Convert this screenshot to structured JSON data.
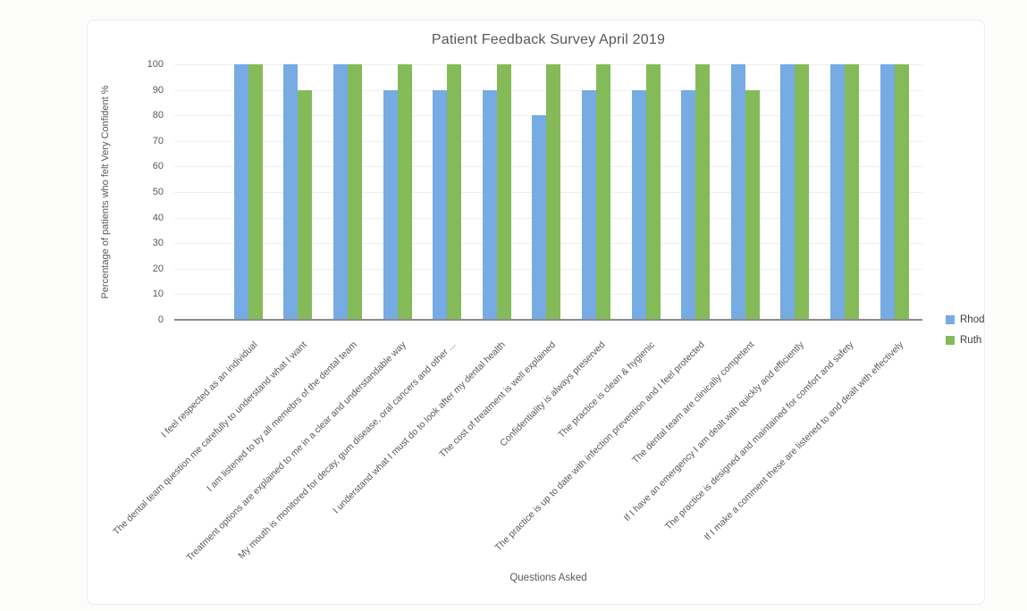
{
  "chart_data": {
    "type": "bar",
    "title": "Patient Feedback Survey April 2019",
    "xlabel": "Questions Asked",
    "ylabel": "Percentage of patients who felt Very Confident %",
    "ylim": [
      0,
      100
    ],
    "ytick_step": 10,
    "grid": true,
    "legend_position": "right",
    "categories": [
      "I feel respected as an individual",
      "The dental team question me carefully to understand what I want",
      "I am listened to by all memebrs of the dental team",
      "Treatment options are explained to me in a clear and understandable way",
      "My mouth is monitored for decay, gum disease, oral cancers and other ...",
      "I understand what I must do to look after my dental health",
      "The cost of treatment is well explained",
      "Confidentiality is always preserved",
      "The practice is clean & hygienic",
      "The practice is up to date with infection prevention and I feel protected",
      "The dental team are clinically competent",
      "If I have an emergency I am dealt with quickly and efficiently",
      "The practice is designed and maintained for comfort and safety",
      "If I make a comment these are listened to and dealt with effectively"
    ],
    "series": [
      {
        "name": "Rhod",
        "color": "#76abe4",
        "values": [
          100,
          100,
          100,
          90,
          90,
          90,
          80,
          90,
          90,
          90,
          100,
          100,
          100,
          100
        ]
      },
      {
        "name": "Ruth",
        "color": "#84bb58",
        "values": [
          100,
          90,
          100,
          100,
          100,
          100,
          100,
          100,
          100,
          100,
          90,
          100,
          100,
          100
        ]
      }
    ]
  }
}
